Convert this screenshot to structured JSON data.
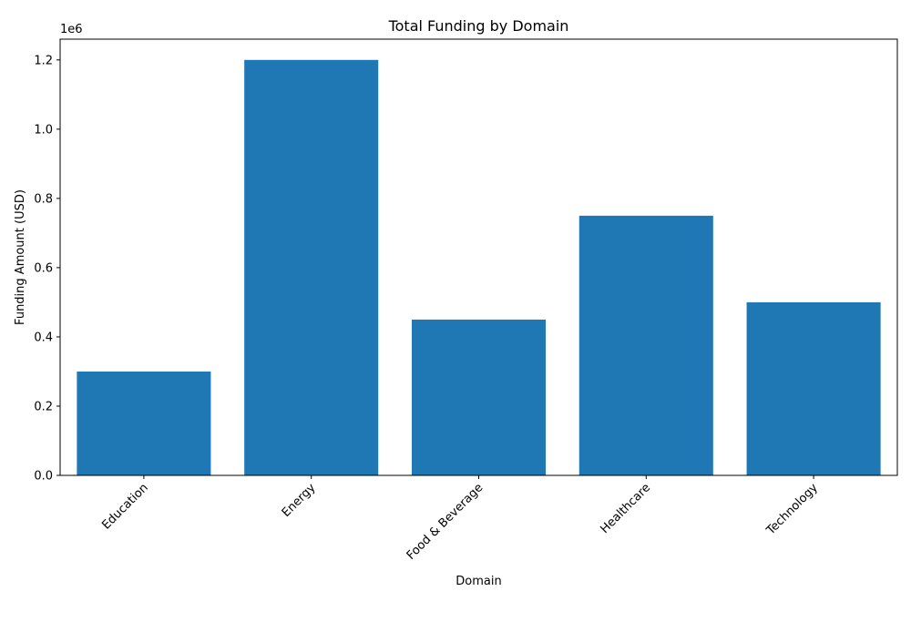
{
  "chart_data": {
    "type": "bar",
    "title": "Total Funding by Domain",
    "xlabel": "Domain",
    "ylabel": "Funding Amount (USD)",
    "y_offset_label": "1e6",
    "categories": [
      "Education",
      "Energy",
      "Food & Beverage",
      "Healthcare",
      "Technology"
    ],
    "values": [
      300000,
      1200000,
      450000,
      750000,
      500000
    ],
    "ylim": [
      0,
      1260000
    ],
    "yticks": [
      0,
      200000,
      400000,
      600000,
      800000,
      1000000,
      1200000
    ],
    "ytick_labels": [
      "0.0",
      "0.2",
      "0.4",
      "0.6",
      "0.8",
      "1.0",
      "1.2"
    ],
    "x_tick_rotation_deg": 45,
    "grid": false,
    "bar_color": "#1f77b4"
  }
}
